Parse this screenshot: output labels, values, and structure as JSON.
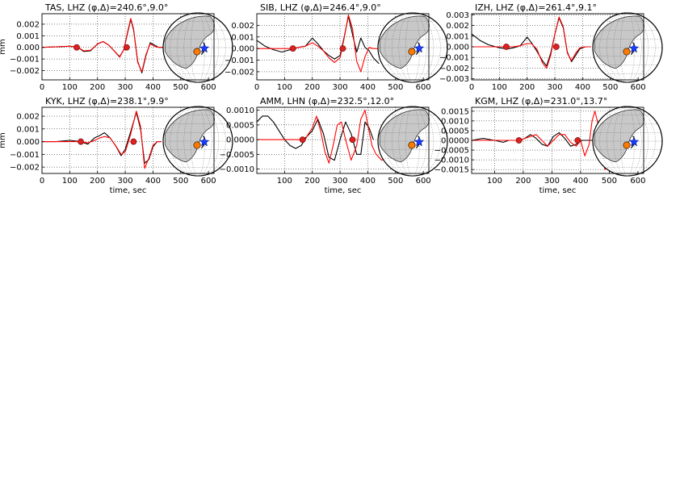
{
  "colors": {
    "observed": "#000000",
    "synthetic": "#ff0000",
    "marker": "#dd2020",
    "globe_land": "#c8c8c8",
    "globe_ocean": "#ffffff",
    "event_star": "#1a3cff",
    "station_marker": "#ff7a00"
  },
  "chart_data": [
    {
      "type": "line",
      "title": "TAS, LHZ (φ,Δ)=240.6°,9.0°",
      "xlabel": "",
      "ylabel": "mm",
      "xlim": [
        0,
        620
      ],
      "ylim": [
        -0.0028,
        0.0029
      ],
      "xticks": [
        0,
        100,
        200,
        300,
        400,
        500,
        600
      ],
      "xtick_labels": [
        "0",
        "100",
        "200",
        "300",
        "400",
        "500",
        "600"
      ],
      "yticks": [
        -0.002,
        -0.001,
        0.0,
        0.001,
        0.002
      ],
      "ytick_labels": [
        "−0.002",
        "−0.001",
        "0.000",
        "0.001",
        "0.002"
      ],
      "markers": [
        {
          "x": 125,
          "y": 0.0
        },
        {
          "x": 305,
          "y": 0.0
        }
      ],
      "series": [
        {
          "color": "black",
          "x": [
            0,
            50,
            100,
            130,
            150,
            175,
            200,
            220,
            240,
            260,
            280,
            295,
            310,
            320,
            330,
            345,
            360,
            375,
            390,
            405,
            420,
            440,
            480,
            520,
            560,
            600
          ],
          "y": [
            0,
            5e-05,
            0.0001,
            0.0,
            -0.00035,
            -0.0003,
            0.0003,
            0.0005,
            0.0002,
            -0.0003,
            -0.0008,
            -0.0002,
            0.0014,
            0.0024,
            0.0015,
            -0.0012,
            -0.0022,
            -0.0007,
            0.0004,
            0.0002,
            0.0,
            0,
            0,
            0,
            0,
            0
          ]
        },
        {
          "color": "red",
          "x": [
            0,
            50,
            100,
            130,
            150,
            175,
            200,
            220,
            240,
            260,
            280,
            295,
            310,
            320,
            330,
            345,
            360,
            375,
            390,
            405,
            420,
            440,
            480,
            520,
            560,
            600
          ],
          "y": [
            0,
            5e-05,
            0.0001,
            0.0,
            -0.0003,
            -0.00025,
            0.00028,
            0.0005,
            0.0002,
            -0.0003,
            -0.00085,
            -0.0002,
            0.0015,
            0.0025,
            0.0016,
            -0.0013,
            -0.0021,
            -0.0006,
            0.0003,
            0.0001,
            0.0,
            0,
            0,
            0,
            0,
            0
          ]
        }
      ]
    },
    {
      "type": "line",
      "title": "SIB, LHZ (φ,Δ)=246.4°,9.0°",
      "xlabel": "",
      "ylabel": "",
      "xlim": [
        0,
        620
      ],
      "ylim": [
        -0.0027,
        0.003
      ],
      "xticks": [
        0,
        100,
        200,
        300,
        400,
        500,
        600
      ],
      "xtick_labels": [
        "0",
        "100",
        "200",
        "300",
        "400",
        "500",
        "600"
      ],
      "yticks": [
        -0.002,
        -0.001,
        0.0,
        0.001,
        0.002
      ],
      "ytick_labels": [
        "−0.002",
        "−0.001",
        "0.000",
        "0.001",
        "0.002"
      ],
      "markers": [
        {
          "x": 130,
          "y": 0.0
        },
        {
          "x": 310,
          "y": 0.0
        }
      ],
      "series": [
        {
          "color": "black",
          "x": [
            0,
            30,
            60,
            90,
            120,
            150,
            175,
            200,
            220,
            240,
            260,
            280,
            300,
            315,
            330,
            345,
            360,
            375,
            390,
            405,
            420,
            440
          ],
          "y": [
            0.0007,
            0.0002,
            -0.0001,
            -0.0003,
            -0.0001,
            0.0001,
            0.0002,
            0.0009,
            0.0004,
            -0.0002,
            -0.0006,
            -0.0009,
            -0.0006,
            0.001,
            0.0028,
            0.0012,
            -0.0003,
            0.0009,
            0.0001,
            -0.0002,
            -0.0008,
            -0.0013
          ]
        },
        {
          "color": "red",
          "x": [
            0,
            50,
            100,
            130,
            150,
            175,
            200,
            220,
            240,
            260,
            280,
            300,
            315,
            330,
            345,
            360,
            375,
            390,
            405,
            420,
            440
          ],
          "y": [
            0,
            0,
            0,
            0,
            0.0001,
            0.0002,
            0.0005,
            0.0002,
            -0.0002,
            -0.0008,
            -0.0012,
            -0.0008,
            0.0009,
            0.0029,
            0.0017,
            -0.0011,
            -0.002,
            -0.0007,
            0.0001,
            0.0,
            0
          ]
        }
      ]
    },
    {
      "type": "line",
      "title": "IZH, LHZ (φ,Δ)=261.4°,9.1°",
      "xlabel": "",
      "ylabel": "",
      "xlim": [
        0,
        620
      ],
      "ylim": [
        -0.0031,
        0.0031
      ],
      "xticks": [
        0,
        100,
        200,
        300,
        400,
        500,
        600
      ],
      "xtick_labels": [
        "0",
        "100",
        "200",
        "300",
        "400",
        "500",
        "600"
      ],
      "yticks": [
        -0.003,
        -0.002,
        -0.001,
        0.0,
        0.001,
        0.002,
        0.003
      ],
      "ytick_labels": [
        "−0.003",
        "−0.002",
        "−0.001",
        "0.000",
        "0.001",
        "0.002",
        "0.003"
      ],
      "markers": [
        {
          "x": 125,
          "y": 0.0
        },
        {
          "x": 305,
          "y": 0.0
        }
      ],
      "series": [
        {
          "color": "black",
          "x": [
            0,
            30,
            60,
            100,
            130,
            150,
            175,
            200,
            215,
            235,
            255,
            270,
            285,
            300,
            315,
            330,
            345,
            360,
            375,
            390,
            410,
            430
          ],
          "y": [
            0.0012,
            0.0006,
            0.0002,
            -0.0001,
            -0.0002,
            -0.0001,
            0.0001,
            0.0009,
            0.0004,
            -0.0004,
            -0.0013,
            -0.0018,
            -0.0006,
            0.0012,
            0.0027,
            0.0018,
            -0.0005,
            -0.0014,
            -0.0008,
            -0.0002,
            0.0,
            0
          ]
        },
        {
          "color": "red",
          "x": [
            0,
            50,
            100,
            130,
            150,
            175,
            200,
            215,
            235,
            255,
            270,
            285,
            300,
            315,
            330,
            345,
            360,
            375,
            390,
            410,
            430
          ],
          "y": [
            0,
            0,
            0,
            0,
            0,
            0.0001,
            0.0003,
            0.0003,
            -0.0002,
            -0.0015,
            -0.002,
            -0.0008,
            0.0012,
            0.0028,
            0.0019,
            -0.0006,
            -0.0013,
            -0.0006,
            -0.0001,
            0.0,
            0
          ]
        }
      ]
    },
    {
      "type": "line",
      "title": "KYK, LHZ (φ,Δ)=238.1°,9.9°",
      "xlabel": "time, sec",
      "ylabel": "mm",
      "xlim": [
        0,
        620
      ],
      "ylim": [
        -0.0025,
        0.0027
      ],
      "xticks": [
        0,
        100,
        200,
        300,
        400,
        500,
        600
      ],
      "xtick_labels": [
        "0",
        "100",
        "200",
        "300",
        "400",
        "500",
        "600"
      ],
      "yticks": [
        -0.002,
        -0.001,
        0.0,
        0.001,
        0.002
      ],
      "ytick_labels": [
        "−0.002",
        "−0.001",
        "0.000",
        "0.001",
        "0.002"
      ],
      "markers": [
        {
          "x": 140,
          "y": 0.0
        },
        {
          "x": 330,
          "y": 0.0
        }
      ],
      "series": [
        {
          "color": "black",
          "x": [
            0,
            50,
            100,
            140,
            165,
            190,
            210,
            225,
            245,
            265,
            285,
            300,
            320,
            340,
            355,
            370,
            385,
            400,
            415,
            430
          ],
          "y": [
            0,
            0,
            0.0001,
            0.0,
            -0.0002,
            0.0003,
            0.0005,
            0.0007,
            0.0003,
            -0.0003,
            -0.0011,
            -0.0006,
            0.0008,
            0.0023,
            0.001,
            -0.0017,
            -0.0014,
            -0.0004,
            0.0,
            0
          ]
        },
        {
          "color": "red",
          "x": [
            0,
            50,
            100,
            140,
            165,
            190,
            210,
            225,
            245,
            265,
            285,
            300,
            320,
            340,
            355,
            370,
            385,
            400,
            415,
            430
          ],
          "y": [
            0,
            0,
            0,
            0,
            -0.0001,
            0.0001,
            0.0003,
            0.0004,
            0.0003,
            -0.0003,
            -0.001,
            -0.0008,
            0.0006,
            0.0024,
            0.0012,
            -0.0021,
            -0.0013,
            -0.0003,
            0.0,
            0
          ]
        }
      ]
    },
    {
      "type": "line",
      "title": "AMM, LHN (φ,Δ)=232.5°,12.0°",
      "xlabel": "time, sec",
      "ylabel": "",
      "xlim": [
        0,
        620
      ],
      "ylim": [
        -0.00115,
        0.0011
      ],
      "xticks": [
        100,
        200,
        300,
        400,
        500,
        600
      ],
      "xtick_labels": [
        "100",
        "200",
        "300",
        "400",
        "500",
        "600"
      ],
      "yticks": [
        -0.001,
        -0.0005,
        0.0,
        0.0005,
        0.001
      ],
      "ytick_labels": [
        "−0.0010",
        "−0.0005",
        "0.0000",
        "0.0005",
        "0.0010"
      ],
      "markers": [
        {
          "x": 165,
          "y": 0.0
        },
        {
          "x": 345,
          "y": 0.0
        }
      ],
      "series": [
        {
          "color": "black",
          "x": [
            0,
            20,
            40,
            60,
            80,
            100,
            120,
            140,
            160,
            180,
            200,
            220,
            240,
            260,
            280,
            300,
            320,
            340,
            360,
            375,
            390,
            405,
            420
          ],
          "y": [
            0.0006,
            0.0008,
            0.0008,
            0.0006,
            0.0003,
            0.0,
            -0.0002,
            -0.0003,
            -0.0002,
            0.0001,
            0.0003,
            0.0007,
            0.0002,
            -0.0006,
            -0.0007,
            0.0,
            0.0006,
            0.0002,
            -0.0005,
            -0.0005,
            0.0006,
            0.0004,
            0.0
          ]
        },
        {
          "color": "red",
          "x": [
            0,
            50,
            100,
            150,
            165,
            180,
            200,
            215,
            230,
            245,
            260,
            275,
            290,
            305,
            320,
            340,
            360,
            375,
            390,
            400,
            415,
            430,
            450,
            470,
            490,
            520
          ],
          "y": [
            0,
            0,
            0,
            0,
            0,
            0.0001,
            0.0004,
            0.0008,
            0.0003,
            -0.0004,
            -0.0008,
            -0.0002,
            0.0005,
            0.0006,
            0.0,
            -0.0007,
            -0.0002,
            0.0007,
            0.001,
            0.0005,
            -0.0002,
            -0.0005,
            -0.0007,
            -0.0006,
            -0.0004,
            -0.0002
          ]
        }
      ]
    },
    {
      "type": "line",
      "title": "KGM, LHZ (φ,Δ)=231.0°,13.7°",
      "xlabel": "time, sec",
      "ylabel": "",
      "xlim": [
        20,
        620
      ],
      "ylim": [
        -0.0017,
        0.0017
      ],
      "xticks": [
        100,
        200,
        300,
        400,
        500,
        600
      ],
      "xtick_labels": [
        "100",
        "200",
        "300",
        "400",
        "500",
        "600"
      ],
      "yticks": [
        -0.0015,
        -0.001,
        -0.0005,
        0.0,
        0.0005,
        0.001,
        0.0015
      ],
      "ytick_labels": [
        "−0.0015",
        "−0.0010",
        "−0.0005",
        "0.0000",
        "0.0005",
        "0.0010",
        "0.0015"
      ],
      "markers": [
        {
          "x": 185,
          "y": 0.0
        },
        {
          "x": 390,
          "y": 0.0
        }
      ],
      "series": [
        {
          "color": "black",
          "x": [
            20,
            60,
            100,
            130,
            150,
            185,
            205,
            225,
            245,
            265,
            285,
            305,
            325,
            345,
            365,
            385,
            405,
            425,
            440,
            455,
            470,
            485,
            500
          ],
          "y": [
            0,
            0.0001,
            0.0,
            -0.0001,
            0.0,
            0.0,
            0.0001,
            0.0003,
            0.0001,
            -0.0002,
            -0.0003,
            0.0002,
            0.0004,
            0.0001,
            -0.0003,
            -0.0002,
            0.0,
            0.0,
            0,
            0,
            0,
            0,
            0
          ]
        },
        {
          "color": "red",
          "x": [
            20,
            60,
            100,
            130,
            150,
            185,
            205,
            225,
            245,
            265,
            285,
            305,
            325,
            345,
            365,
            385,
            400,
            415,
            430,
            440,
            450,
            460,
            470,
            485,
            500
          ],
          "y": [
            0,
            0,
            0,
            0,
            0,
            0,
            0.0001,
            0.0002,
            0.0003,
            0.0,
            -0.0003,
            0.0,
            0.0003,
            0.0003,
            -0.0001,
            -0.0003,
            0.0,
            -0.0008,
            -0.0002,
            0.001,
            0.0015,
            0.0009,
            -0.0006,
            -0.0015,
            -0.0009
          ]
        }
      ]
    }
  ]
}
